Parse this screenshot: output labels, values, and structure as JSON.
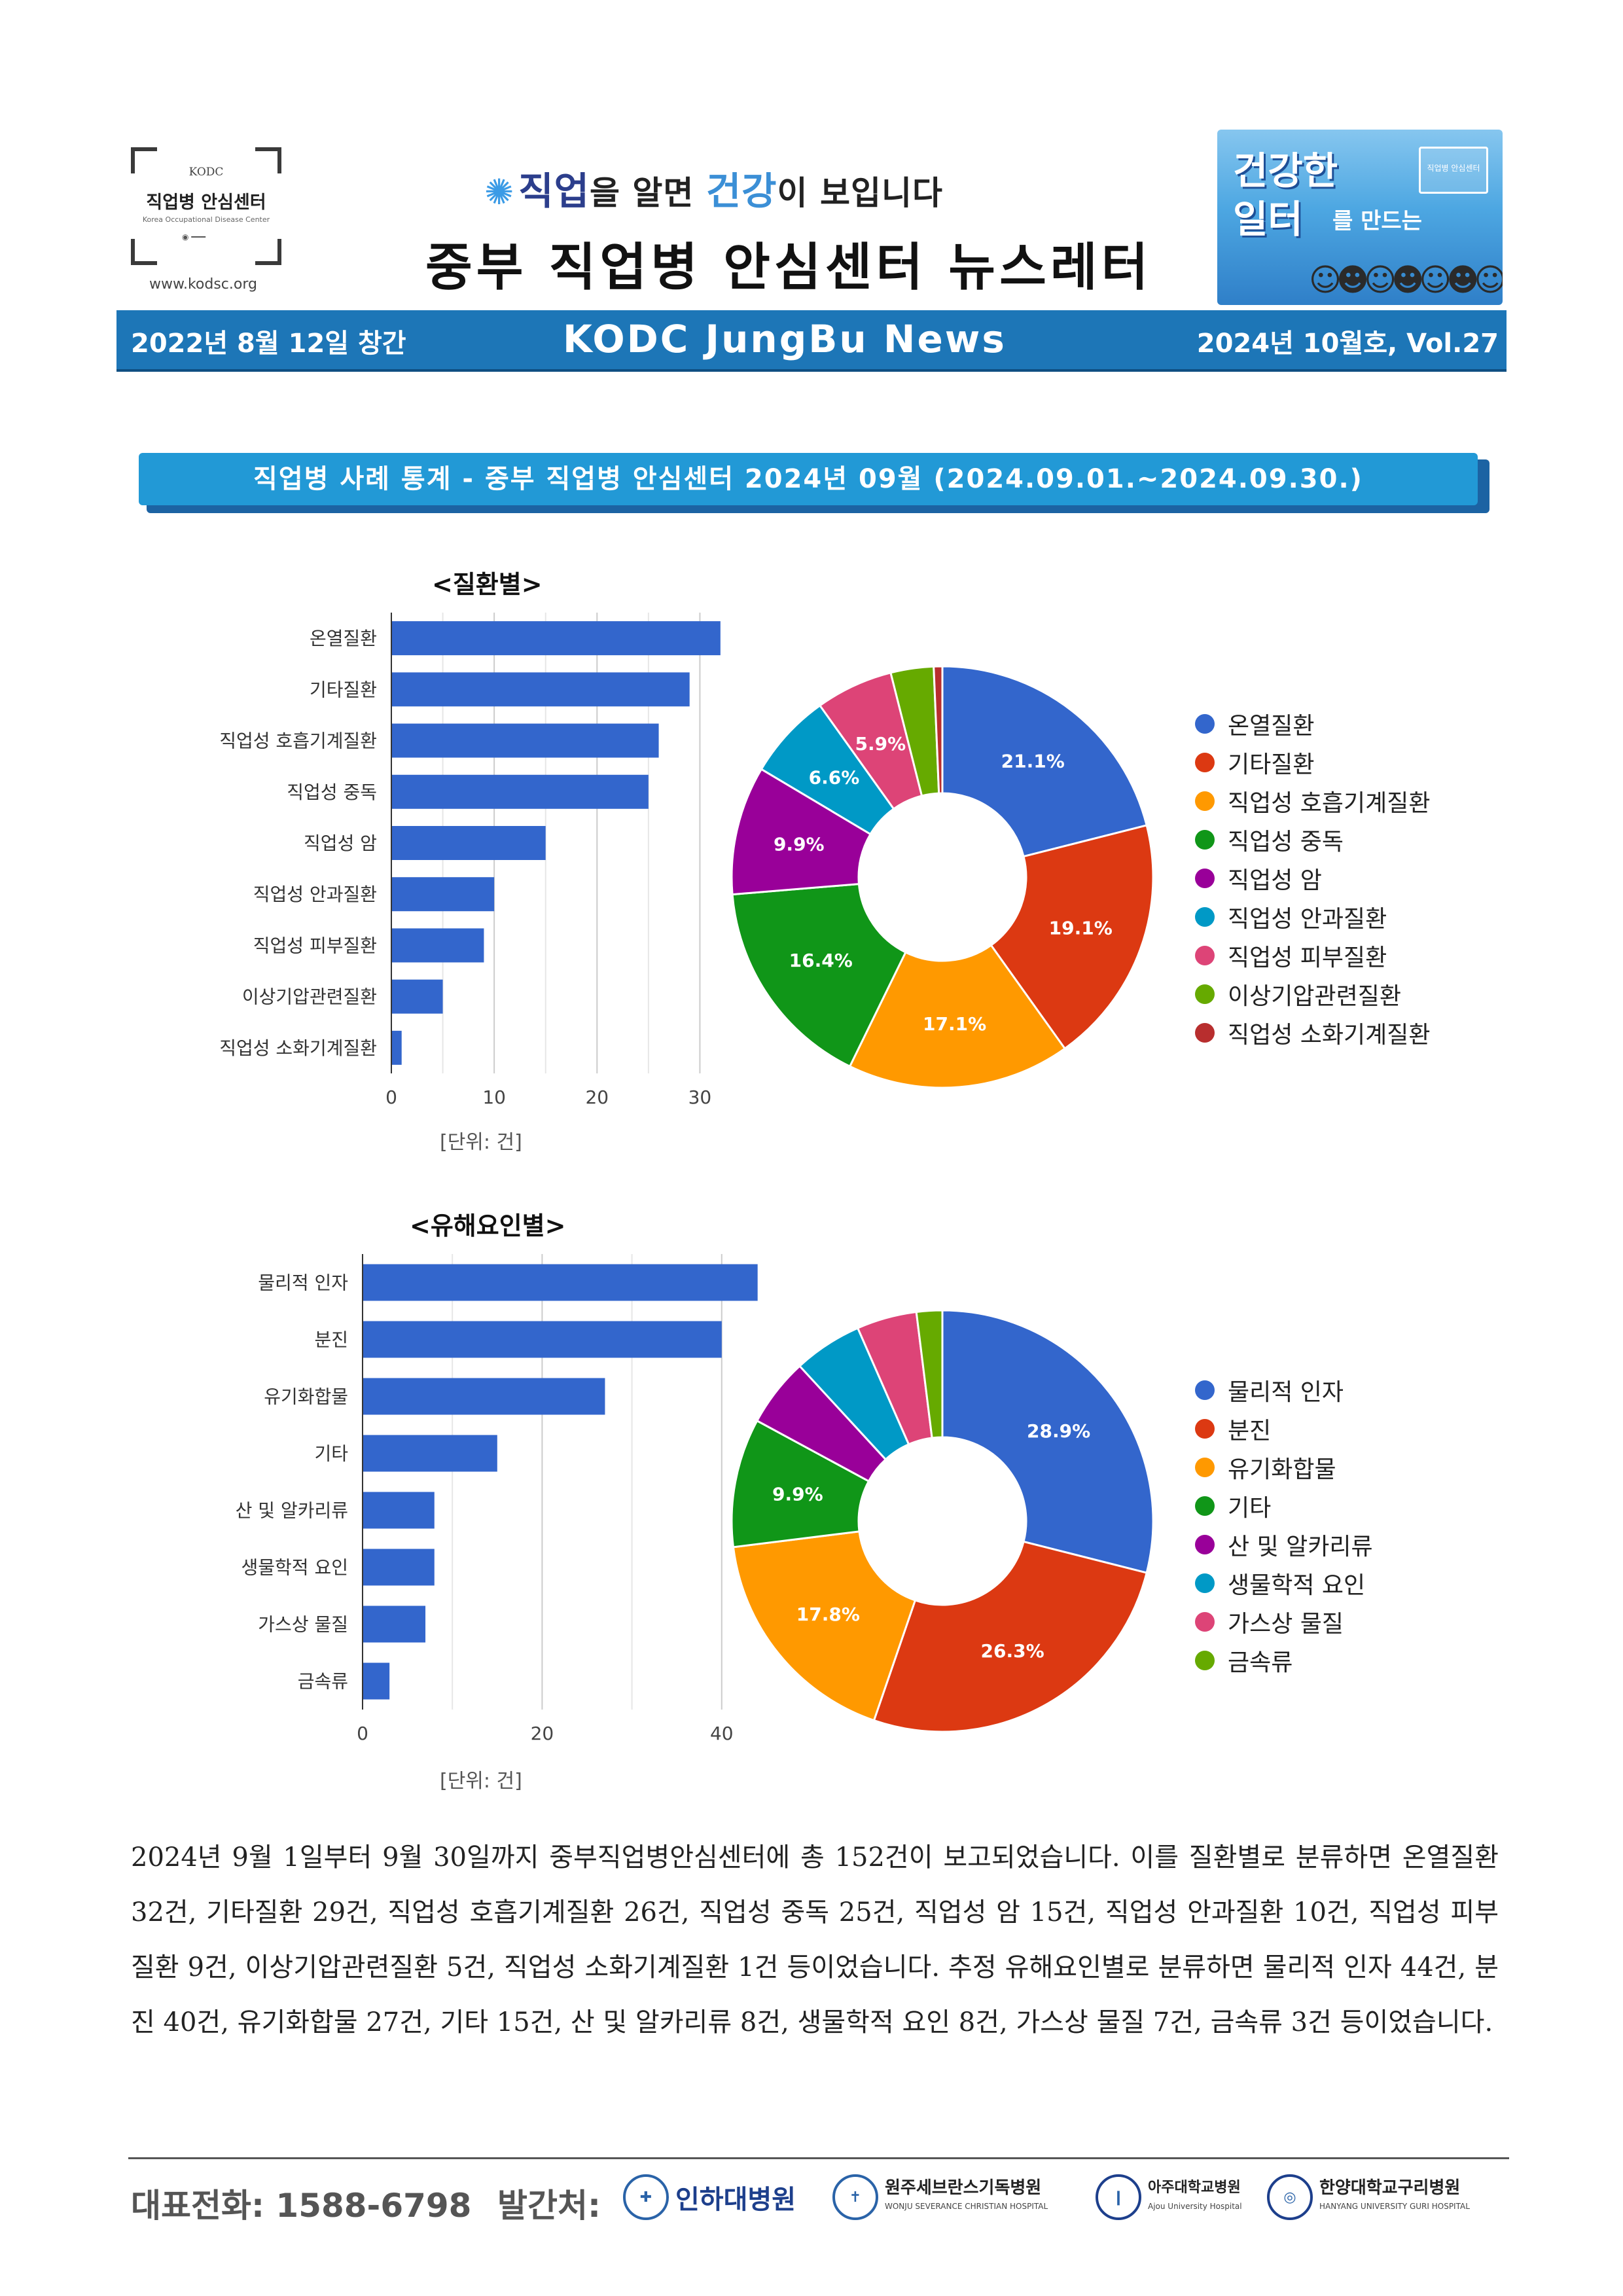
{
  "header": {
    "logo": {
      "kodc": "KODC",
      "name": "직업병 안심센터",
      "sub": "Korea Occupational Disease Center"
    },
    "site_url": "www.kodsc.org",
    "slogan": {
      "part1": "직업",
      "part2": "을 알면 ",
      "part3": "건강",
      "part4": "이 보입니다"
    },
    "newsletter_title": "중부 직업병 안심센터 뉴스레터",
    "banner": {
      "line1": "건강한",
      "line2": "일터",
      "line3": "를 만드는",
      "seal": "직업병 안심센터"
    }
  },
  "top_bar": {
    "founded": "2022년 8월 12일 창간",
    "name": "KODC JungBu News",
    "issue": "2024년 10월호, Vol.27"
  },
  "section_title": "직업병 사례 통계 - 중부 직업병 안심센터   2024년 09월 (2024.09.01.~2024.09.30.)",
  "chart_data": [
    {
      "type": "bar",
      "orientation": "horizontal",
      "title": "<질환별>",
      "categories": [
        "온열질환",
        "기타질환",
        "직업성 호흡기계질환",
        "직업성 중독",
        "직업성 암",
        "직업성 안과질환",
        "직업성 피부질환",
        "이상기압관련질환",
        "직업성 소화기계질환"
      ],
      "values": [
        32,
        29,
        26,
        25,
        15,
        10,
        9,
        5,
        1
      ],
      "xlim": [
        0,
        35
      ],
      "xticks": [
        0,
        10,
        20,
        30
      ],
      "unit_label": "[단위: 건]",
      "bar_color": "#3366cc",
      "grid": true
    },
    {
      "type": "pie",
      "donut": true,
      "categories": [
        "온열질환",
        "기타질환",
        "직업성 호흡기계질환",
        "직업성 중독",
        "직업성 암",
        "직업성 안과질환",
        "직업성 피부질환",
        "이상기압관련질환",
        "직업성 소화기계질환"
      ],
      "values": [
        32,
        29,
        26,
        25,
        15,
        10,
        9,
        5,
        1
      ],
      "labels": [
        "21.1%",
        "19.1%",
        "17.1%",
        "16.4%",
        "9.9%",
        "6.6%",
        "5.9%",
        "",
        ""
      ],
      "colors": [
        "#3366cc",
        "#dc3912",
        "#ff9900",
        "#109618",
        "#990099",
        "#0099c6",
        "#dd4477",
        "#66aa00",
        "#b82e2e"
      ],
      "legend_position": "right"
    },
    {
      "type": "bar",
      "orientation": "horizontal",
      "title": "<유해요인별>",
      "categories": [
        "물리적 인자",
        "분진",
        "유기화합물",
        "기타",
        "산 및 알카리류",
        "생물학적 요인",
        "가스상 물질",
        "금속류"
      ],
      "values": [
        44,
        40,
        27,
        15,
        8,
        8,
        7,
        3
      ],
      "xlim": [
        0,
        50
      ],
      "xticks": [
        0,
        20,
        40
      ],
      "unit_label": "[단위: 건]",
      "bar_color": "#3366cc",
      "grid": true
    },
    {
      "type": "pie",
      "donut": true,
      "categories": [
        "물리적 인자",
        "분진",
        "유기화합물",
        "기타",
        "산 및 알카리류",
        "생물학적 요인",
        "가스상 물질",
        "금속류"
      ],
      "values": [
        44,
        40,
        27,
        15,
        8,
        8,
        7,
        3
      ],
      "labels": [
        "28.9%",
        "26.3%",
        "17.8%",
        "9.9%",
        "",
        "",
        "",
        ""
      ],
      "colors": [
        "#3366cc",
        "#dc3912",
        "#ff9900",
        "#109618",
        "#990099",
        "#0099c6",
        "#dd4477",
        "#66aa00"
      ],
      "legend_position": "right"
    }
  ],
  "summary_text": "2024년 9월 1일부터 9월 30일까지 중부직업병안심센터에 총 152건이 보고되었습니다. 이를 질환별로 분류하면 온열질환 32건, 기타질환 29건, 직업성 호흡기계질환 26건, 직업성 중독 25건, 직업성 암 15건, 직업성 안과질환 10건, 직업성 피부질환 9건, 이상기압관련질환 5건, 직업성 소화기계질환 1건 등이었습니다. 추정 유해요인별로 분류하면 물리적 인자 44건, 분진 40건, 유기화합물 27건, 기타 15건, 산 및 알카리류 8건, 생물학적 요인 8건, 가스상 물질 7건, 금속류 3건 등이었습니다.",
  "footer": {
    "phone": "대표전화:  1588-6798",
    "publisher_label": "발간처:",
    "hospitals": [
      {
        "name": "인하대병원",
        "icon": "hospital-emblem-icon"
      },
      {
        "name": "원주세브란스기독병원",
        "sub": "WONJU SEVERANCE CHRISTIAN HOSPITAL",
        "icon": "hospital-emblem-icon"
      },
      {
        "name": "아주대학교병원",
        "sub": "Ajou University Hospital",
        "icon": "hospital-emblem-icon"
      },
      {
        "name": "한양대학교구리병원",
        "sub": "HANYANG UNIVERSITY GURI HOSPITAL",
        "icon": "hospital-emblem-icon"
      }
    ]
  }
}
